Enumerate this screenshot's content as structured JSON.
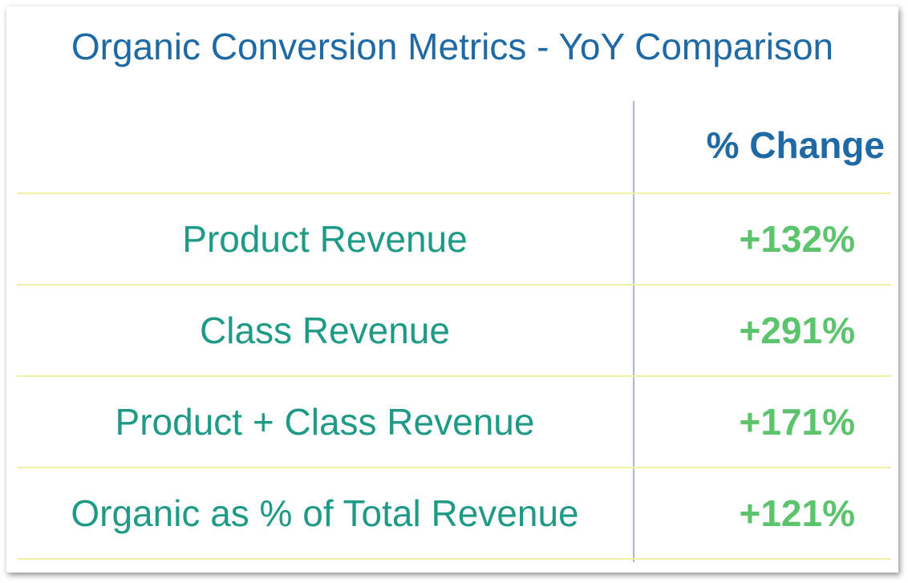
{
  "chart_data": {
    "type": "table",
    "title": "Organic Conversion Metrics - YoY Comparison",
    "column_header": "% Change",
    "rows": [
      {
        "label": "Product Revenue",
        "value": "+132%"
      },
      {
        "label": "Class Revenue",
        "value": "+291%"
      },
      {
        "label": "Product + Class Revenue",
        "value": "+171%"
      },
      {
        "label": "Organic as % of Total Revenue",
        "value": "+121%"
      }
    ]
  },
  "colors": {
    "title": "#1f6aa5",
    "labels": "#1f9a86",
    "values": "#5cc46c",
    "row_divider": "#eef0a4",
    "column_divider": "#b0b4dc"
  }
}
